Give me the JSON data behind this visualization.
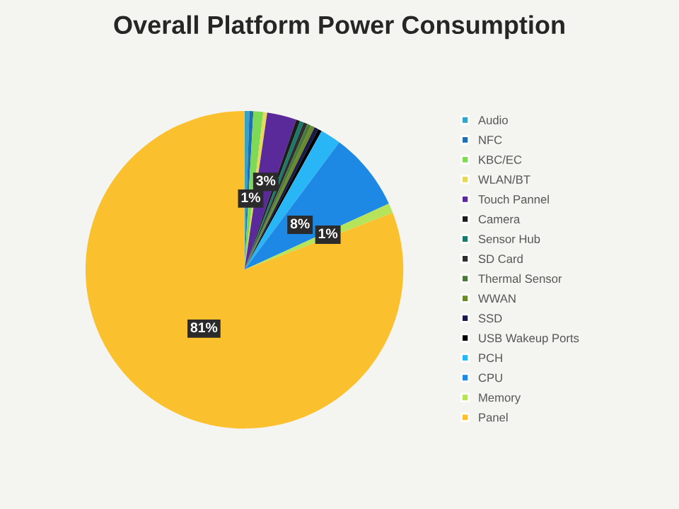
{
  "chart_data": {
    "type": "pie",
    "title": "Overall Platform Power Consumption",
    "categories": [
      "Audio",
      "NFC",
      "KBC/EC",
      "WLAN/BT",
      "Touch Pannel",
      "Camera",
      "Sensor Hub",
      "SD Card",
      "Thermal Sensor",
      "WWAN",
      "SSD",
      "USB Wakeup Ports",
      "PCH",
      "CPU",
      "Memory",
      "Panel"
    ],
    "values": [
      0.5,
      0.4,
      1,
      0.4,
      3,
      0.4,
      0.4,
      0.4,
      0.4,
      0.4,
      0.4,
      0.4,
      2.1,
      8,
      1,
      81
    ],
    "colors": [
      "#33a3c8",
      "#1f6fb0",
      "#7ed957",
      "#e8d85a",
      "#5b2a9a",
      "#1c1c1c",
      "#1a7a6a",
      "#2e2e2e",
      "#4a7a3a",
      "#6a8a2a",
      "#1a1a4a",
      "#000000",
      "#29b6f6",
      "#1e88e5",
      "#b5e35a",
      "#fbc02d"
    ],
    "value_labels": [
      null,
      null,
      "1%",
      null,
      "3%",
      null,
      null,
      null,
      null,
      null,
      null,
      null,
      null,
      "8%",
      "1%",
      "81%"
    ],
    "legend": "right"
  }
}
